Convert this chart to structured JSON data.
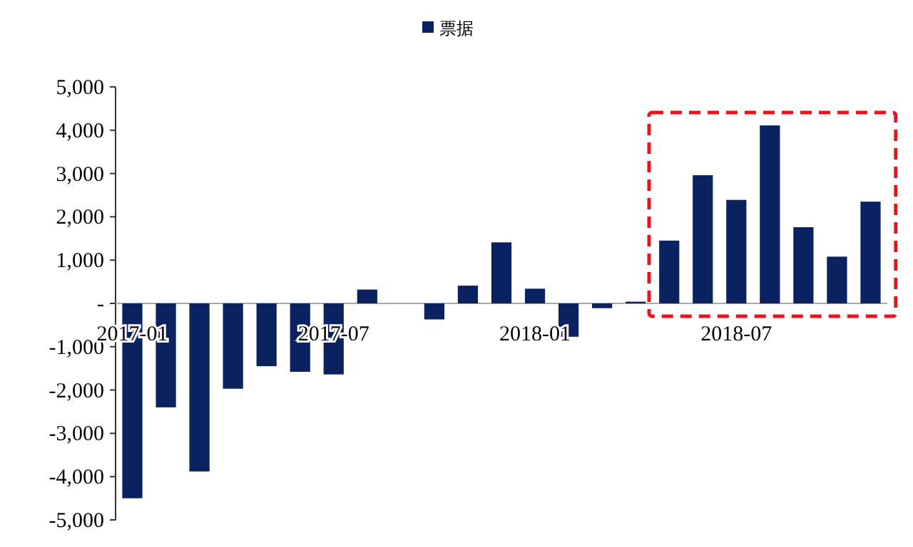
{
  "chart_data": {
    "type": "bar",
    "categories": [
      "2017-01",
      null,
      null,
      null,
      null,
      null,
      "2017-07",
      null,
      null,
      null,
      null,
      null,
      "2018-01",
      null,
      null,
      null,
      null,
      null,
      "2018-07",
      null,
      null,
      null,
      null
    ],
    "series": [
      {
        "name": "票据",
        "color": "#0b2260",
        "values": [
          -4500,
          -2400,
          -3880,
          -1970,
          -1450,
          -1580,
          -1640,
          320,
          null,
          -370,
          410,
          1410,
          340,
          -770,
          -110,
          40,
          1450,
          2960,
          2390,
          4110,
          1760,
          1080,
          2350
        ]
      }
    ],
    "ylim": [
      -5000,
      5000
    ],
    "yticks": [
      {
        "value": -5000,
        "label": "-5,000"
      },
      {
        "value": -4000,
        "label": "-4,000"
      },
      {
        "value": -3000,
        "label": "-3,000"
      },
      {
        "value": -2000,
        "label": "-2,000"
      },
      {
        "value": -1000,
        "label": "-1,000"
      },
      {
        "value": 0,
        "label": "-"
      },
      {
        "value": 1000,
        "label": "1,000"
      },
      {
        "value": 2000,
        "label": "2,000"
      },
      {
        "value": 3000,
        "label": "3,000"
      },
      {
        "value": 4000,
        "label": "4,000"
      },
      {
        "value": 5000,
        "label": "5,000"
      }
    ],
    "legend": "top"
  }
}
